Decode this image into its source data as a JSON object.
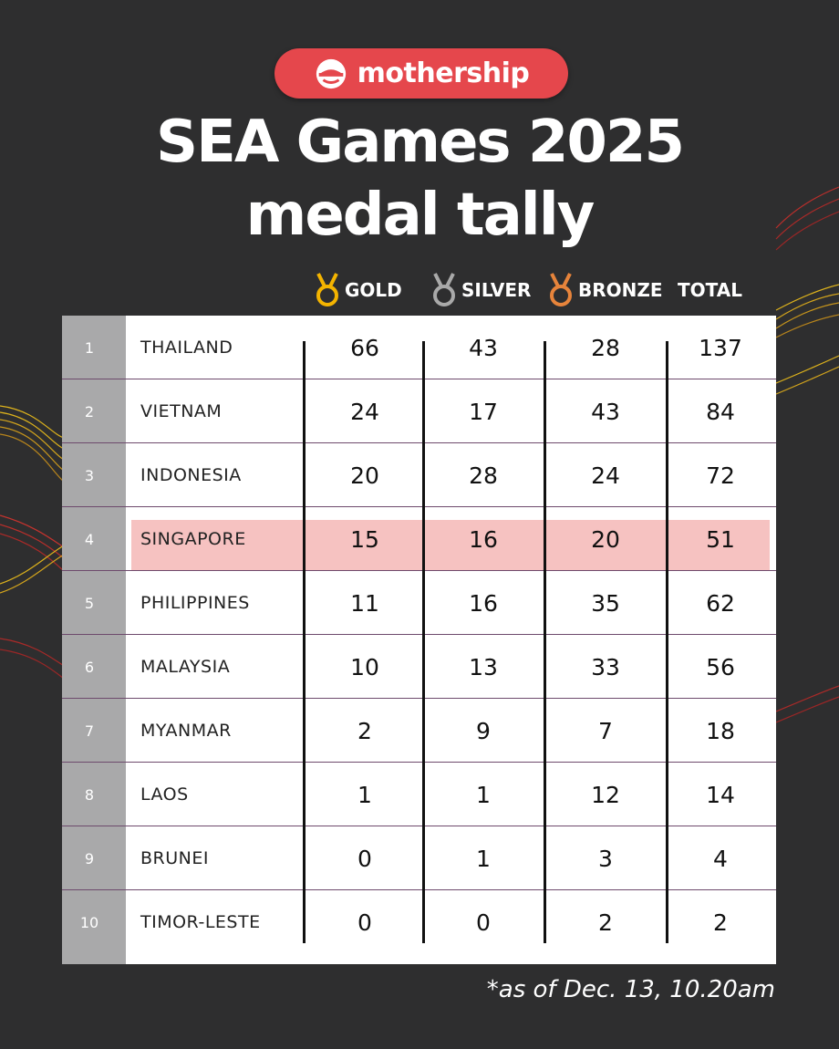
{
  "brand": {
    "name": "mothership",
    "color": "#e5474c"
  },
  "title": {
    "line1": "SEA Games 2025",
    "line2": "medal tally"
  },
  "columns": {
    "gold": "GOLD",
    "silver": "SILVER",
    "bronze": "BRONZE",
    "total": "TOTAL",
    "gold_color": "#f4b400",
    "silver_color": "#a9a9a9",
    "bronze_color": "#e7843b"
  },
  "rows": [
    {
      "rank": "1",
      "country": "THAILAND",
      "gold": "66",
      "silver": "43",
      "bronze": "28",
      "total": "137"
    },
    {
      "rank": "2",
      "country": "VIETNAM",
      "gold": "24",
      "silver": "17",
      "bronze": "43",
      "total": "84"
    },
    {
      "rank": "3",
      "country": "INDONESIA",
      "gold": "20",
      "silver": "28",
      "bronze": "24",
      "total": "72"
    },
    {
      "rank": "4",
      "country": "SINGAPORE",
      "gold": "15",
      "silver": "16",
      "bronze": "20",
      "total": "51",
      "highlighted": true
    },
    {
      "rank": "5",
      "country": "PHILIPPINES",
      "gold": "11",
      "silver": "16",
      "bronze": "35",
      "total": "62"
    },
    {
      "rank": "6",
      "country": "MALAYSIA",
      "gold": "10",
      "silver": "13",
      "bronze": "33",
      "total": "56"
    },
    {
      "rank": "7",
      "country": "MYANMAR",
      "gold": "2",
      "silver": "9",
      "bronze": "7",
      "total": "18"
    },
    {
      "rank": "8",
      "country": "LAOS",
      "gold": "1",
      "silver": "1",
      "bronze": "12",
      "total": "14"
    },
    {
      "rank": "9",
      "country": "BRUNEI",
      "gold": "0",
      "silver": "1",
      "bronze": "3",
      "total": "4"
    },
    {
      "rank": "10",
      "country": "TIMOR-LESTE",
      "gold": "0",
      "silver": "0",
      "bronze": "2",
      "total": "2"
    }
  ],
  "highlight_color": "#f6c2c1",
  "footnote": "*as of Dec. 13, 10.20am"
}
